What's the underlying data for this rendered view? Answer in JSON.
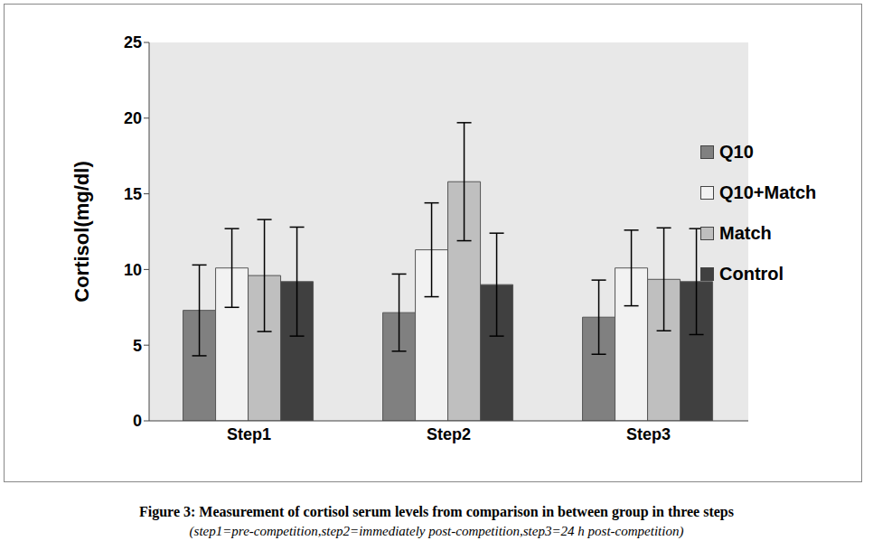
{
  "chart_data": {
    "type": "bar",
    "title": "Figure 3: Measurement of cortisol serum levels from comparison in between group in three steps",
    "subtitle": "(step1=pre-competition,step2=immediately post-competition,step3=24 h post-competition)",
    "y_label": "Cortisol(mg/dl)",
    "categories": [
      "Step1",
      "Step2",
      "Step3"
    ],
    "ylim": [
      0,
      25
    ],
    "yticks": [
      0,
      5,
      10,
      15,
      20,
      25
    ],
    "grid": false,
    "legend": "right",
    "series": [
      {
        "name": "Q10",
        "color": "#808080",
        "values": [
          7.3,
          7.15,
          6.85
        ],
        "errors": [
          3.0,
          2.55,
          2.45
        ]
      },
      {
        "name": "Q10+Match",
        "color": "#f2f2f2",
        "values": [
          10.1,
          11.3,
          10.1
        ],
        "errors": [
          2.6,
          3.1,
          2.5
        ]
      },
      {
        "name": "Match",
        "color": "#bfbfbf",
        "values": [
          9.6,
          15.8,
          9.35
        ],
        "errors": [
          3.7,
          3.9,
          3.4
        ]
      },
      {
        "name": "Control",
        "color": "#404040",
        "values": [
          9.2,
          9.0,
          9.2
        ],
        "errors": [
          3.6,
          3.4,
          3.5
        ]
      }
    ]
  }
}
